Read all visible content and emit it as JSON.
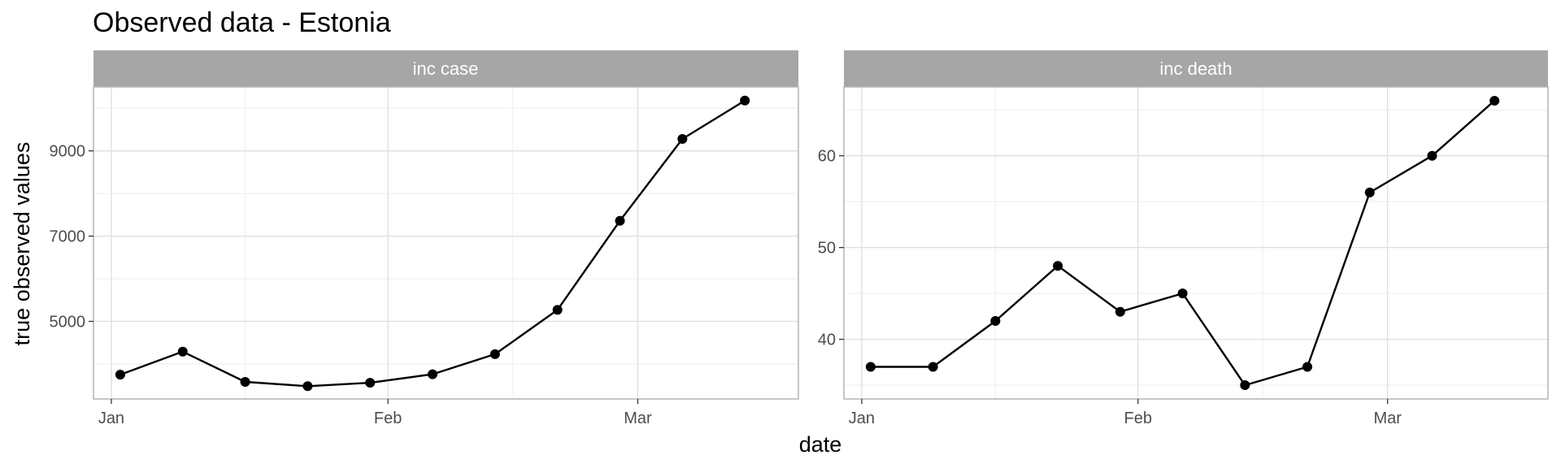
{
  "chart_data": {
    "type": "line",
    "title": "Observed data - Estonia",
    "xlabel": "date",
    "ylabel": "true observed values",
    "grid": true,
    "x_tick_labels": [
      "Jan",
      "Feb",
      "Mar"
    ],
    "panels": [
      {
        "strip_label": "inc case",
        "x": [
          "2021-01-02",
          "2021-01-09",
          "2021-01-16",
          "2021-01-23",
          "2021-01-30",
          "2021-02-06",
          "2021-02-13",
          "2021-02-20",
          "2021-02-27",
          "2021-03-06",
          "2021-03-13"
        ],
        "values": [
          3750,
          4290,
          3580,
          3480,
          3560,
          3760,
          4230,
          5270,
          7360,
          9280,
          10180
        ],
        "y_ticks": [
          5000,
          7000,
          9000
        ],
        "ylim": [
          3180,
          10500
        ]
      },
      {
        "strip_label": "inc death",
        "x": [
          "2021-01-02",
          "2021-01-09",
          "2021-01-16",
          "2021-01-23",
          "2021-01-30",
          "2021-02-06",
          "2021-02-13",
          "2021-02-20",
          "2021-02-27",
          "2021-03-06",
          "2021-03-13"
        ],
        "values": [
          37,
          37,
          42,
          48,
          43,
          45,
          35,
          37,
          56,
          60,
          66
        ],
        "y_ticks": [
          40,
          50,
          60
        ],
        "ylim": [
          33.5,
          67.5
        ]
      }
    ],
    "colors": {
      "line": "#000000",
      "strip_bg": "#a6a6a6",
      "panel_border": "#b3b3b3",
      "grid_major": "#dedede",
      "grid_minor": "#eeeeee"
    }
  }
}
